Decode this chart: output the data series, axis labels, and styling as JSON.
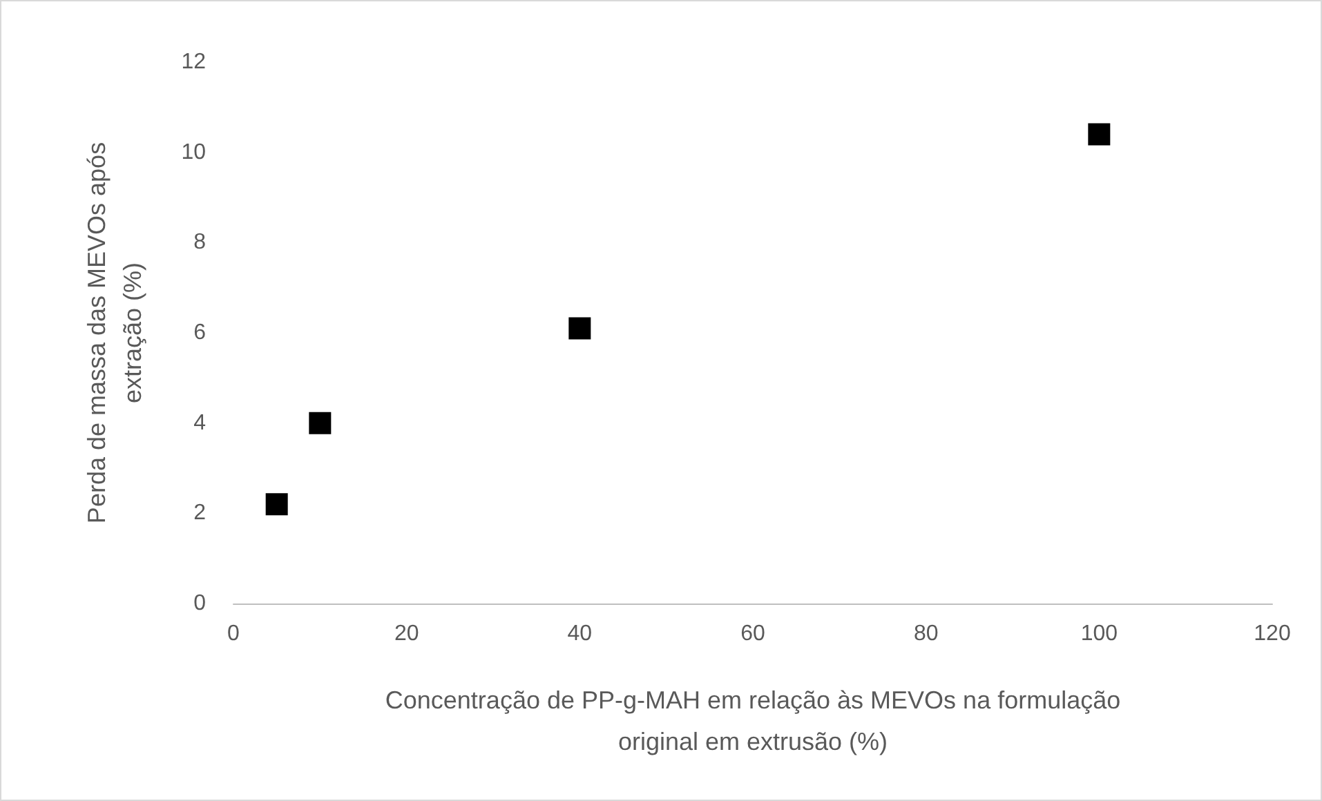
{
  "chart_data": {
    "type": "scatter",
    "xlabel": "Concentração de PP-g-MAH em relação às MEVOs na formulação\noriginal em extrusão (%)",
    "ylabel": "Perda de massa das MEVOs após\nextração (%)",
    "x": [
      5,
      10,
      40,
      100
    ],
    "series": [
      {
        "color": "#000000",
        "values": [
          2.2,
          4.0,
          6.1,
          10.4
        ]
      }
    ],
    "xlim": [
      0,
      120
    ],
    "xticks": [
      0,
      20,
      40,
      60,
      80,
      100,
      120
    ],
    "ylim": [
      0,
      12
    ],
    "yticks": [
      0,
      2,
      4,
      6,
      8,
      10,
      12
    ],
    "grid": false,
    "marker": "square"
  }
}
